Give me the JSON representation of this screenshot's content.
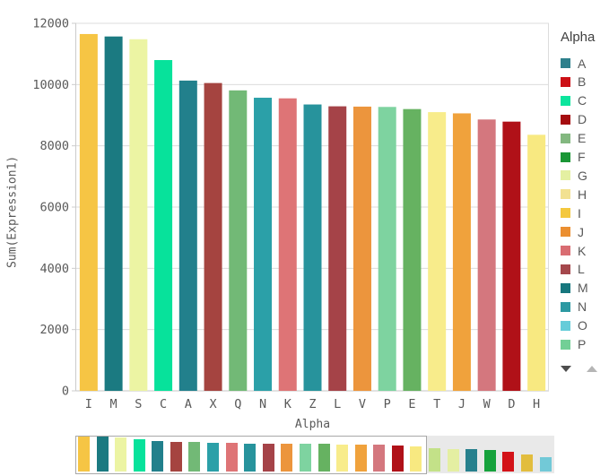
{
  "chart_data": {
    "type": "bar",
    "title": "",
    "xlabel": "Alpha",
    "ylabel": "Sum(Expression1)",
    "ylim": [
      0,
      12000
    ],
    "yticks": [
      0,
      2000,
      4000,
      6000,
      8000,
      10000,
      12000
    ],
    "grid": true,
    "legend_position": "right",
    "sort": "descending",
    "categories": [
      "I",
      "M",
      "S",
      "C",
      "A",
      "X",
      "Q",
      "N",
      "K",
      "Z",
      "L",
      "V",
      "P",
      "E",
      "T",
      "J",
      "W",
      "D",
      "H"
    ],
    "values": [
      11650,
      11570,
      11480,
      10800,
      10130,
      10050,
      9810,
      9570,
      9550,
      9350,
      9290,
      9280,
      9270,
      9200,
      9100,
      9060,
      8860,
      8790,
      8360
    ],
    "colors": [
      "#f6c544",
      "#1b7a81",
      "#ecf4a3",
      "#07e29b",
      "#22808c",
      "#a54440",
      "#72b976",
      "#2ba0a8",
      "#de7476",
      "#27939c",
      "#a54348",
      "#ec953d",
      "#7ed3a0",
      "#66b261",
      "#f8ec8b",
      "#f0a23c",
      "#d4777e",
      "#b01118",
      "#f8e981"
    ]
  },
  "legend": {
    "title": "Alpha",
    "items": [
      {
        "label": "A",
        "color": "#2e808c"
      },
      {
        "label": "B",
        "color": "#cc1016"
      },
      {
        "label": "C",
        "color": "#0ce59d"
      },
      {
        "label": "D",
        "color": "#a50d10"
      },
      {
        "label": "E",
        "color": "#83b880"
      },
      {
        "label": "F",
        "color": "#1a9636"
      },
      {
        "label": "G",
        "color": "#e4f0a2"
      },
      {
        "label": "H",
        "color": "#f2e191"
      },
      {
        "label": "I",
        "color": "#f4c83e"
      },
      {
        "label": "J",
        "color": "#eb8f31"
      },
      {
        "label": "K",
        "color": "#d96d72"
      },
      {
        "label": "L",
        "color": "#a5484c"
      },
      {
        "label": "M",
        "color": "#17777e"
      },
      {
        "label": "N",
        "color": "#2d99a2"
      },
      {
        "label": "O",
        "color": "#66ccd9"
      },
      {
        "label": "P",
        "color": "#72cf96"
      }
    ],
    "scroll_down_color": "#4d4d4d",
    "scroll_up_color": "#b5b5b5"
  },
  "navigator": {
    "window": {
      "bar_count": 19
    },
    "extra_bars": [
      {
        "color": "#c3e188",
        "value": 7800
      },
      {
        "color": "#e4efa2",
        "value": 7600
      },
      {
        "color": "#27808d",
        "value": 7500
      },
      {
        "color": "#16a23c",
        "value": 7200
      },
      {
        "color": "#d31318",
        "value": 6600
      },
      {
        "color": "#e2bd3e",
        "value": 5700
      },
      {
        "color": "#72c9d7",
        "value": 4900
      }
    ]
  },
  "style": {
    "gridline_color": "#dcdcdc",
    "baseline_color": "#c6c6c6",
    "axis_line_color": "#cccccc",
    "tick_text_color": "#595959"
  }
}
